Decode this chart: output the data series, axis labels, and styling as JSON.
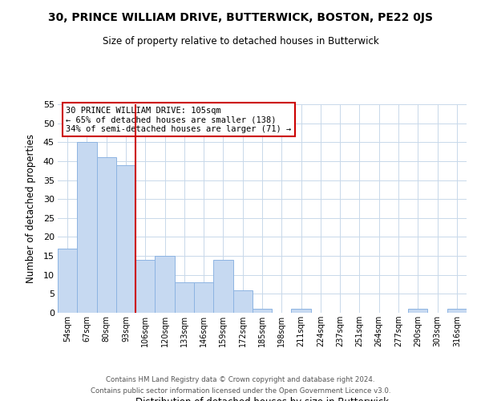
{
  "title": "30, PRINCE WILLIAM DRIVE, BUTTERWICK, BOSTON, PE22 0JS",
  "subtitle": "Size of property relative to detached houses in Butterwick",
  "xlabel": "Distribution of detached houses by size in Butterwick",
  "ylabel": "Number of detached properties",
  "categories": [
    "54sqm",
    "67sqm",
    "80sqm",
    "93sqm",
    "106sqm",
    "120sqm",
    "133sqm",
    "146sqm",
    "159sqm",
    "172sqm",
    "185sqm",
    "198sqm",
    "211sqm",
    "224sqm",
    "237sqm",
    "251sqm",
    "264sqm",
    "277sqm",
    "290sqm",
    "303sqm",
    "316sqm"
  ],
  "values": [
    17,
    45,
    41,
    39,
    14,
    15,
    8,
    8,
    14,
    6,
    1,
    0,
    1,
    0,
    0,
    0,
    0,
    0,
    1,
    0,
    1
  ],
  "bar_color": "#c6d9f1",
  "bar_edge_color": "#8db4e2",
  "red_line_index": 4,
  "annotation_text_line1": "30 PRINCE WILLIAM DRIVE: 105sqm",
  "annotation_text_line2": "← 65% of detached houses are smaller (138)",
  "annotation_text_line3": "34% of semi-detached houses are larger (71) →",
  "annotation_box_color": "#ffffff",
  "annotation_box_edge": "#cc0000",
  "red_line_color": "#cc0000",
  "ylim": [
    0,
    55
  ],
  "yticks": [
    0,
    5,
    10,
    15,
    20,
    25,
    30,
    35,
    40,
    45,
    50,
    55
  ],
  "footer_line1": "Contains HM Land Registry data © Crown copyright and database right 2024.",
  "footer_line2": "Contains public sector information licensed under the Open Government Licence v3.0.",
  "background_color": "#ffffff",
  "grid_color": "#c8d8ea"
}
